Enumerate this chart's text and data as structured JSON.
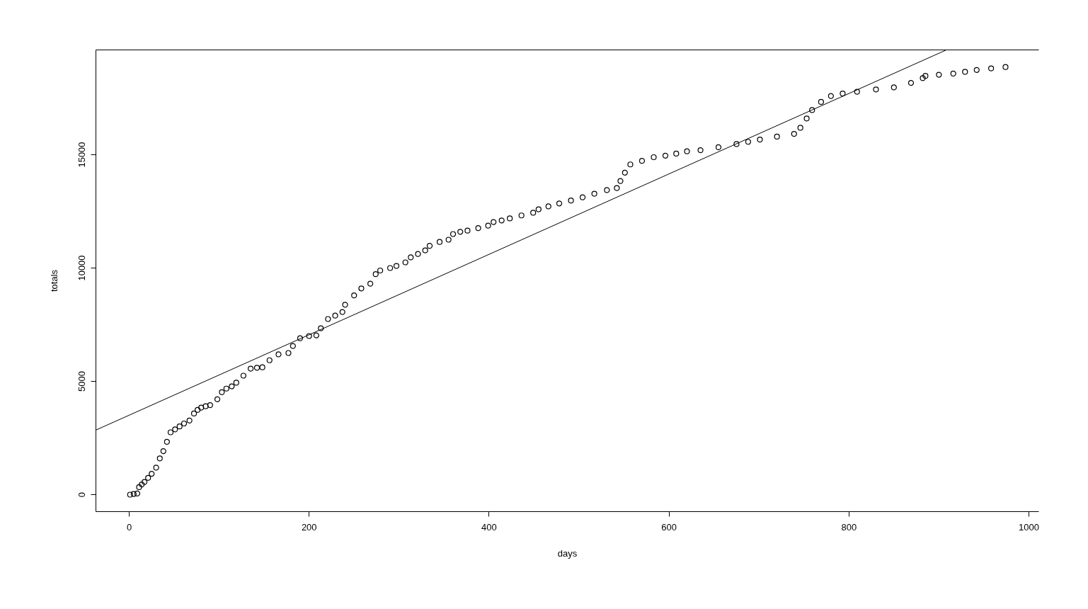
{
  "chart_data": {
    "type": "scatter",
    "xlabel": "days",
    "ylabel": "totals",
    "xlim": [
      -37,
      1011
    ],
    "ylim": [
      -750,
      19625
    ],
    "xticks": [
      0,
      200,
      400,
      600,
      800,
      1000
    ],
    "yticks": [
      0,
      5000,
      10000,
      15000
    ],
    "series": [
      {
        "color": "#000000",
        "marker": "circle",
        "x": [
          1,
          5,
          9,
          11,
          14,
          17,
          21,
          25,
          30,
          34,
          38,
          42,
          46,
          51,
          56,
          61,
          67,
          72,
          76,
          80,
          85,
          90,
          98,
          103,
          108,
          114,
          119,
          127,
          135,
          142,
          148,
          156,
          166,
          177,
          182,
          190,
          200,
          208,
          213,
          221,
          229,
          237,
          240,
          250,
          258,
          268,
          274,
          279,
          290,
          297,
          307,
          313,
          321,
          329,
          334,
          345,
          355,
          360,
          368,
          376,
          388,
          399,
          405,
          414,
          423,
          436,
          449,
          455,
          466,
          478,
          491,
          504,
          517,
          531,
          542,
          546,
          551,
          557,
          570,
          583,
          596,
          608,
          620,
          635,
          655,
          675,
          688,
          701,
          720,
          739,
          746,
          753,
          759,
          769,
          780,
          793,
          809,
          830,
          850,
          869,
          882,
          885,
          900,
          916,
          929,
          942,
          958,
          974
        ],
        "values": [
          0,
          30,
          50,
          330,
          450,
          560,
          740,
          920,
          1190,
          1600,
          1920,
          2330,
          2750,
          2880,
          3010,
          3140,
          3270,
          3580,
          3740,
          3840,
          3900,
          3950,
          4210,
          4520,
          4680,
          4780,
          4940,
          5250,
          5560,
          5600,
          5620,
          5930,
          6190,
          6250,
          6560,
          6900,
          7000,
          7030,
          7340,
          7750,
          7900,
          8060,
          8380,
          8790,
          9100,
          9310,
          9730,
          9890,
          10000,
          10090,
          10250,
          10470,
          10620,
          10780,
          10980,
          11150,
          11250,
          11500,
          11600,
          11650,
          11760,
          11870,
          12030,
          12100,
          12190,
          12320,
          12440,
          12590,
          12720,
          12850,
          12980,
          13120,
          13280,
          13440,
          13530,
          13840,
          14210,
          14570,
          14730,
          14890,
          14960,
          15050,
          15150,
          15200,
          15330,
          15470,
          15570,
          15670,
          15800,
          15920,
          16190,
          16600,
          16970,
          17330,
          17590,
          17700,
          17780,
          17880,
          17970,
          18170,
          18380,
          18480,
          18530,
          18580,
          18660,
          18740,
          18810,
          18870
        ]
      },
      {
        "type": "line",
        "color": "#000000",
        "marker": "none",
        "x": [
          -37,
          908
        ],
        "values": [
          2850,
          19620
        ]
      }
    ]
  }
}
